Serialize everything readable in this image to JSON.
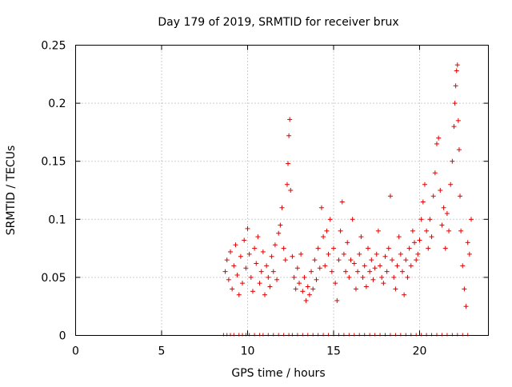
{
  "chart_data": {
    "type": "scatter",
    "title": "Day 179 of 2019, SRMTID for receiver brux",
    "xlabel": "GPS time / hours",
    "ylabel": "SRMTID / TECUs",
    "xlim": [
      0,
      24
    ],
    "ylim": [
      0,
      0.25
    ],
    "x_ticks": [
      0,
      5,
      10,
      15,
      20
    ],
    "x_tick_labels": [
      "0",
      "5",
      "10",
      "15",
      "20"
    ],
    "y_ticks": [
      0,
      0.05,
      0.1,
      0.15,
      0.2,
      0.25
    ],
    "y_tick_labels": [
      "0",
      "0.05",
      "0.1",
      "0.15",
      "0.2",
      "0.25"
    ],
    "grid": true,
    "marker": "plus",
    "color": "#e00000",
    "series": [
      {
        "name": "SRMTID",
        "points": [
          [
            8.7,
            0.055
          ],
          [
            8.8,
            0.065
          ],
          [
            8.9,
            0.048
          ],
          [
            9.0,
            0.072
          ],
          [
            9.1,
            0.04
          ],
          [
            9.2,
            0.06
          ],
          [
            9.3,
            0.078
          ],
          [
            9.4,
            0.052
          ],
          [
            9.5,
            0.035
          ],
          [
            9.6,
            0.068
          ],
          [
            9.7,
            0.045
          ],
          [
            9.8,
            0.082
          ],
          [
            9.9,
            0.058
          ],
          [
            10.0,
            0.092
          ],
          [
            10.1,
            0.07
          ],
          [
            10.2,
            0.05
          ],
          [
            10.3,
            0.038
          ],
          [
            10.4,
            0.075
          ],
          [
            10.5,
            0.062
          ],
          [
            10.6,
            0.085
          ],
          [
            10.7,
            0.045
          ],
          [
            10.8,
            0.055
          ],
          [
            10.9,
            0.072
          ],
          [
            11.0,
            0.035
          ],
          [
            11.1,
            0.06
          ],
          [
            11.2,
            0.05
          ],
          [
            11.3,
            0.042
          ],
          [
            11.4,
            0.068
          ],
          [
            11.5,
            0.055
          ],
          [
            11.6,
            0.078
          ],
          [
            11.7,
            0.048
          ],
          [
            11.8,
            0.088
          ],
          [
            11.9,
            0.095
          ],
          [
            12.0,
            0.11
          ],
          [
            12.1,
            0.075
          ],
          [
            12.2,
            0.065
          ],
          [
            12.3,
            0.13
          ],
          [
            12.35,
            0.148
          ],
          [
            12.4,
            0.172
          ],
          [
            12.45,
            0.186
          ],
          [
            12.5,
            0.125
          ],
          [
            12.6,
            0.068
          ],
          [
            12.7,
            0.05
          ],
          [
            12.8,
            0.04
          ],
          [
            12.9,
            0.058
          ],
          [
            13.0,
            0.045
          ],
          [
            13.1,
            0.07
          ],
          [
            13.2,
            0.038
          ],
          [
            13.3,
            0.05
          ],
          [
            13.4,
            0.03
          ],
          [
            13.5,
            0.042
          ],
          [
            13.6,
            0.035
          ],
          [
            13.7,
            0.055
          ],
          [
            13.8,
            0.04
          ],
          [
            13.9,
            0.065
          ],
          [
            14.0,
            0.048
          ],
          [
            14.1,
            0.075
          ],
          [
            14.2,
            0.058
          ],
          [
            14.3,
            0.11
          ],
          [
            14.4,
            0.085
          ],
          [
            14.5,
            0.06
          ],
          [
            14.6,
            0.09
          ],
          [
            14.7,
            0.07
          ],
          [
            14.8,
            0.1
          ],
          [
            14.9,
            0.055
          ],
          [
            15.0,
            0.075
          ],
          [
            15.1,
            0.045
          ],
          [
            15.2,
            0.03
          ],
          [
            15.3,
            0.065
          ],
          [
            15.4,
            0.09
          ],
          [
            15.5,
            0.115
          ],
          [
            15.6,
            0.07
          ],
          [
            15.7,
            0.055
          ],
          [
            15.8,
            0.08
          ],
          [
            15.9,
            0.05
          ],
          [
            16.0,
            0.065
          ],
          [
            16.1,
            0.1
          ],
          [
            16.2,
            0.062
          ],
          [
            16.3,
            0.04
          ],
          [
            16.4,
            0.055
          ],
          [
            16.5,
            0.07
          ],
          [
            16.6,
            0.085
          ],
          [
            16.7,
            0.05
          ],
          [
            16.8,
            0.06
          ],
          [
            16.9,
            0.042
          ],
          [
            17.0,
            0.075
          ],
          [
            17.1,
            0.055
          ],
          [
            17.2,
            0.065
          ],
          [
            17.3,
            0.048
          ],
          [
            17.4,
            0.058
          ],
          [
            17.5,
            0.07
          ],
          [
            17.6,
            0.09
          ],
          [
            17.7,
            0.06
          ],
          [
            17.8,
            0.05
          ],
          [
            17.9,
            0.045
          ],
          [
            18.0,
            0.068
          ],
          [
            18.1,
            0.055
          ],
          [
            18.2,
            0.075
          ],
          [
            18.3,
            0.12
          ],
          [
            18.4,
            0.065
          ],
          [
            18.5,
            0.05
          ],
          [
            18.6,
            0.04
          ],
          [
            18.7,
            0.06
          ],
          [
            18.8,
            0.085
          ],
          [
            18.9,
            0.07
          ],
          [
            19.0,
            0.055
          ],
          [
            19.1,
            0.035
          ],
          [
            19.2,
            0.065
          ],
          [
            19.3,
            0.05
          ],
          [
            19.4,
            0.075
          ],
          [
            19.5,
            0.06
          ],
          [
            19.6,
            0.09
          ],
          [
            19.7,
            0.08
          ],
          [
            19.8,
            0.065
          ],
          [
            19.9,
            0.07
          ],
          [
            20.0,
            0.082
          ],
          [
            20.1,
            0.1
          ],
          [
            20.2,
            0.115
          ],
          [
            20.3,
            0.13
          ],
          [
            20.4,
            0.09
          ],
          [
            20.5,
            0.075
          ],
          [
            20.6,
            0.1
          ],
          [
            20.7,
            0.085
          ],
          [
            20.8,
            0.12
          ],
          [
            20.9,
            0.14
          ],
          [
            21.0,
            0.165
          ],
          [
            21.1,
            0.17
          ],
          [
            21.2,
            0.125
          ],
          [
            21.3,
            0.095
          ],
          [
            21.4,
            0.11
          ],
          [
            21.5,
            0.075
          ],
          [
            21.6,
            0.105
          ],
          [
            21.7,
            0.09
          ],
          [
            21.8,
            0.13
          ],
          [
            21.9,
            0.15
          ],
          [
            22.0,
            0.18
          ],
          [
            22.05,
            0.2
          ],
          [
            22.1,
            0.215
          ],
          [
            22.15,
            0.228
          ],
          [
            22.2,
            0.233
          ],
          [
            22.25,
            0.185
          ],
          [
            22.3,
            0.16
          ],
          [
            22.35,
            0.12
          ],
          [
            22.4,
            0.09
          ],
          [
            22.5,
            0.06
          ],
          [
            22.6,
            0.04
          ],
          [
            22.7,
            0.025
          ],
          [
            22.8,
            0.08
          ],
          [
            22.9,
            0.07
          ],
          [
            23.0,
            0.1
          ]
        ]
      }
    ],
    "zero_markers_x": [
      8.6,
      8.8,
      9.0,
      9.2,
      9.5,
      9.7,
      9.9,
      10.1,
      10.4,
      10.7,
      10.9,
      11.2,
      11.5,
      11.8,
      12.1,
      12.4,
      12.6,
      12.9,
      13.2,
      13.5,
      13.8,
      14.1,
      14.4,
      14.7,
      15.0,
      15.3,
      15.6,
      15.9,
      16.2,
      16.5,
      16.8,
      17.1,
      17.4,
      17.7,
      18.0,
      18.3,
      18.6,
      18.9,
      19.2,
      19.5,
      19.8,
      20.1,
      20.4,
      20.7,
      21.0,
      21.3,
      21.6,
      21.9,
      22.2,
      22.5,
      22.8
    ]
  }
}
